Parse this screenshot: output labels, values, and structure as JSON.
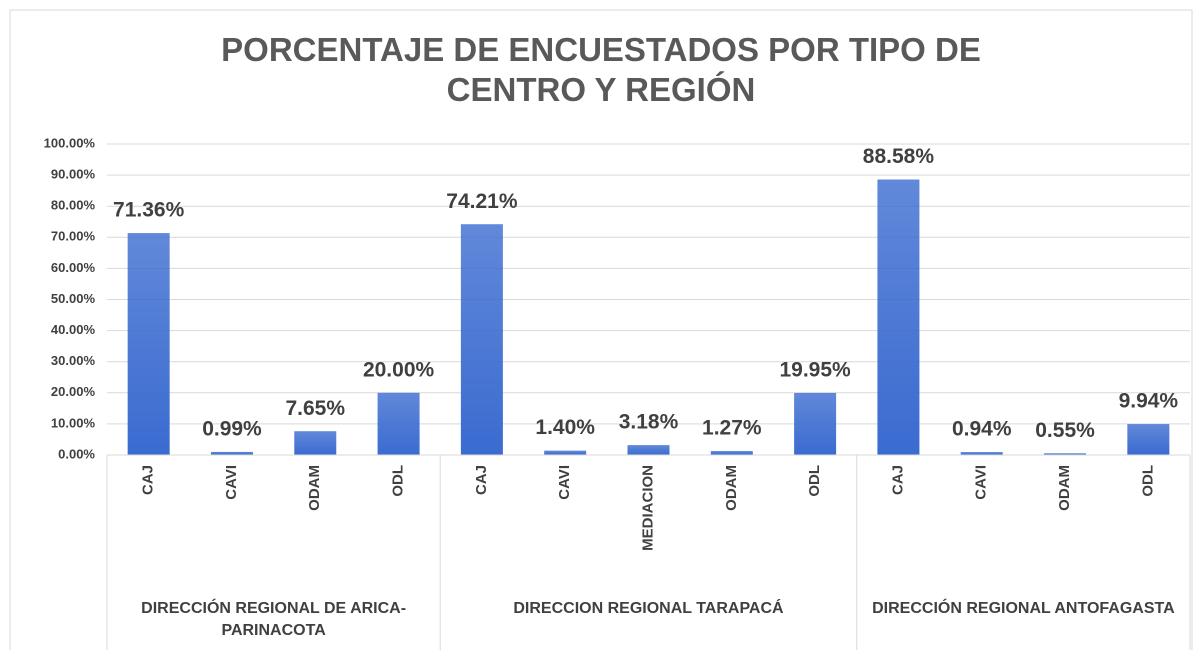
{
  "chart_data": {
    "type": "bar",
    "title": "PORCENTAJE DE ENCUESTADOS POR TIPO DE CENTRO Y REGIÓN",
    "categories": [
      "CAJ",
      "CAVI",
      "ODAM",
      "ODL",
      "CAJ",
      "CAVI",
      "MEDIACION",
      "ODAM",
      "ODL",
      "CAJ",
      "CAVI",
      "ODAM",
      "ODL"
    ],
    "groups": [
      {
        "label": "DIRECCIÓN REGIONAL DE ARICA-PARINACOTA",
        "size": 4
      },
      {
        "label": "DIRECCION REGIONAL TARAPACÁ",
        "size": 5
      },
      {
        "label": "DIRECCIÓN REGIONAL ANTOFAGASTA",
        "size": 4
      }
    ],
    "values": [
      71.36,
      0.99,
      7.65,
      20.0,
      74.21,
      1.4,
      3.18,
      1.27,
      19.95,
      88.58,
      0.94,
      0.55,
      9.94
    ],
    "value_labels": [
      "71.36%",
      "0.99%",
      "7.65%",
      "20.00%",
      "74.21%",
      "1.40%",
      "3.18%",
      "1.27%",
      "19.95%",
      "88.58%",
      "0.94%",
      "0.55%",
      "9.94%"
    ],
    "color": "#3a6bd0",
    "ylim": [
      0,
      100
    ],
    "yticks": [
      {
        "value": 0,
        "label": "0.00%"
      },
      {
        "value": 10,
        "label": "10.00%"
      },
      {
        "value": 20,
        "label": "20.00%"
      },
      {
        "value": 30,
        "label": "30.00%"
      },
      {
        "value": 40,
        "label": "40.00%"
      },
      {
        "value": 50,
        "label": "50.00%"
      },
      {
        "value": 60,
        "label": "60.00%"
      },
      {
        "value": 70,
        "label": "70.00%"
      },
      {
        "value": 80,
        "label": "80.00%"
      },
      {
        "value": 90,
        "label": "90.00%"
      },
      {
        "value": 100,
        "label": "100.00%"
      }
    ],
    "grid": true
  }
}
